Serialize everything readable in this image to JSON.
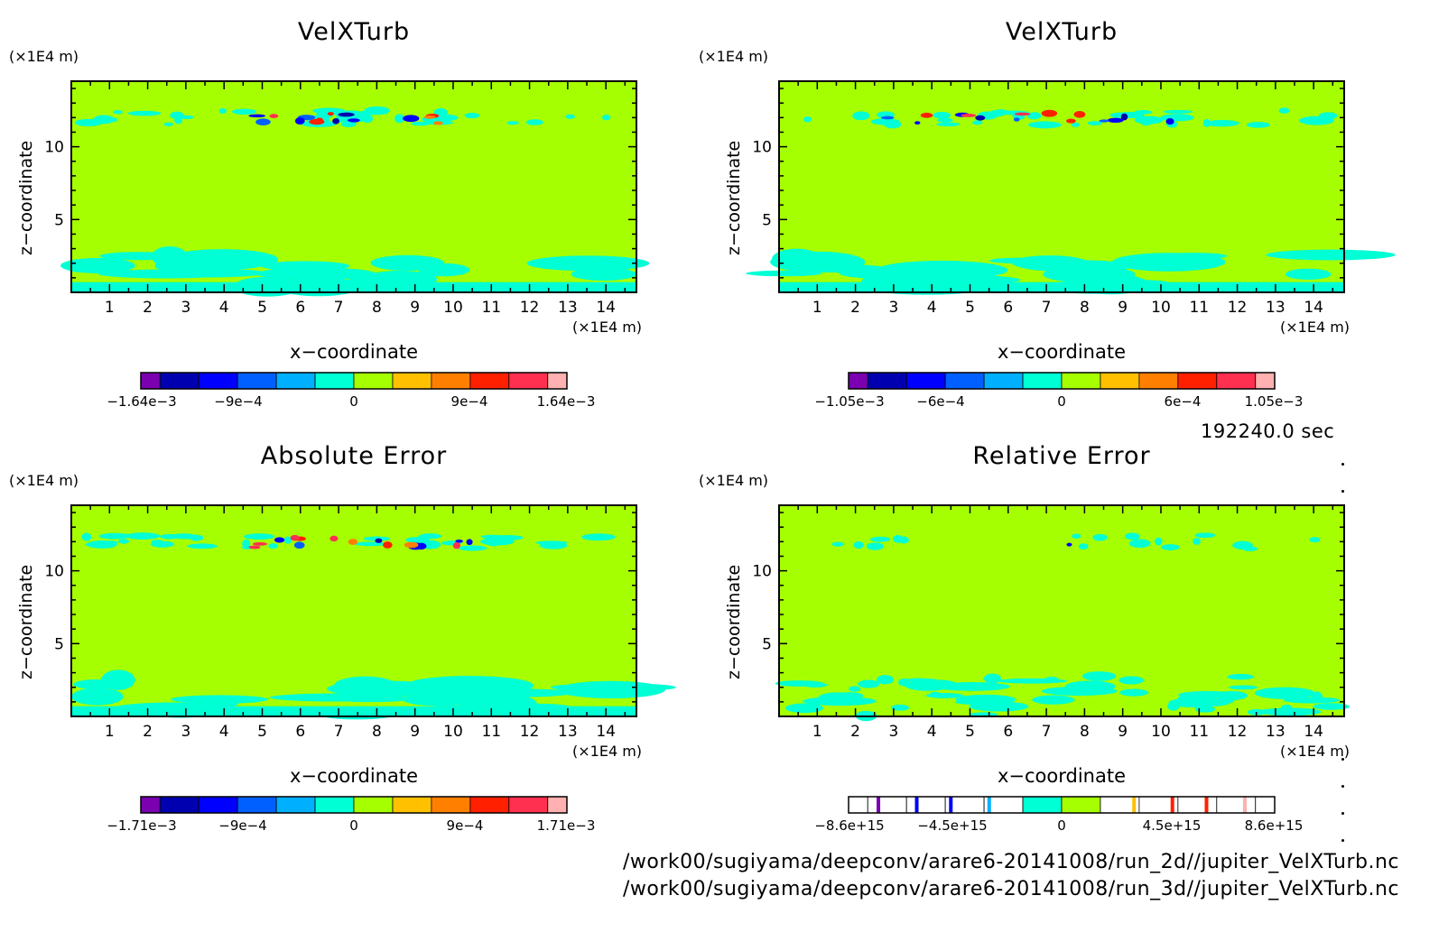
{
  "time_label": "192240.0 sec",
  "footer_lines": [
    "/work00/sugiyama/deepconv/arare6-20141008/run_2d//jupiter_VelXTurb.nc",
    "/work00/sugiyama/deepconv/arare6-20141008/run_3d//jupiter_VelXTurb.nc"
  ],
  "colors": {
    "background_field": "#a6ff00",
    "cyan_region": "#00ffd5",
    "frame": "#000000"
  },
  "colorbar_palette": [
    "#7a00b0",
    "#0000b0",
    "#0000ff",
    "#0060ff",
    "#00b0ff",
    "#00ffd5",
    "#a6ff00",
    "#ffc000",
    "#ff8000",
    "#ff2000",
    "#ff3050",
    "#ffb0b0"
  ],
  "panels": [
    {
      "title": "VelXTurb",
      "y_unit": "(×1E4 m)",
      "x_unit": "(×1E4 m)",
      "xlabel": "x−coordinate",
      "ylabel": "z−coordinate",
      "colorbar_labels": [
        "−1.64e−3",
        "−9e−4",
        "0",
        "9e−4",
        "1.64e−3"
      ]
    },
    {
      "title": "VelXTurb",
      "y_unit": "(×1E4 m)",
      "x_unit": "(×1E4 m)",
      "xlabel": "x−coordinate",
      "ylabel": "z−coordinate",
      "colorbar_labels": [
        "−1.05e−3",
        "−6e−4",
        "0",
        "6e−4",
        "1.05e−3"
      ]
    },
    {
      "title": "Absolute Error",
      "y_unit": "(×1E4 m)",
      "x_unit": "(×1E4 m)",
      "xlabel": "x−coordinate",
      "ylabel": "z−coordinate",
      "colorbar_labels": [
        "−1.71e−3",
        "−9e−4",
        "0",
        "9e−4",
        "1.71e−3"
      ]
    },
    {
      "title": "Relative Error",
      "y_unit": "(×1E4 m)",
      "x_unit": "(×1E4 m)",
      "xlabel": "x−coordinate",
      "ylabel": "z−coordinate",
      "colorbar_labels": [
        "−8.6e+15",
        "−4.5e+15",
        "0",
        "4.5e+15",
        "8.6e+15"
      ]
    }
  ],
  "chart_data": [
    {
      "type": "heatmap",
      "title": "VelXTurb",
      "xlabel": "x−coordinate",
      "ylabel": "z−coordinate",
      "x_ticks": [
        1,
        2,
        3,
        4,
        5,
        6,
        7,
        8,
        9,
        10,
        11,
        12,
        13,
        14
      ],
      "y_ticks": [
        5,
        10
      ],
      "xlim": [
        0,
        14.8
      ],
      "ylim": [
        0,
        14.5
      ],
      "colorbar_range": [
        -0.00164,
        0.00164
      ]
    },
    {
      "type": "heatmap",
      "title": "VelXTurb",
      "xlabel": "x−coordinate",
      "ylabel": "z−coordinate",
      "x_ticks": [
        1,
        2,
        3,
        4,
        5,
        6,
        7,
        8,
        9,
        10,
        11,
        12,
        13,
        14
      ],
      "y_ticks": [
        5,
        10
      ],
      "xlim": [
        0,
        14.8
      ],
      "ylim": [
        0,
        14.5
      ],
      "colorbar_range": [
        -0.00105,
        0.00105
      ]
    },
    {
      "type": "heatmap",
      "title": "Absolute Error",
      "xlabel": "x−coordinate",
      "ylabel": "z−coordinate",
      "x_ticks": [
        1,
        2,
        3,
        4,
        5,
        6,
        7,
        8,
        9,
        10,
        11,
        12,
        13,
        14
      ],
      "y_ticks": [
        5,
        10
      ],
      "xlim": [
        0,
        14.8
      ],
      "ylim": [
        0,
        14.5
      ],
      "colorbar_range": [
        -0.00171,
        0.00171
      ]
    },
    {
      "type": "heatmap",
      "title": "Relative Error",
      "xlabel": "x−coordinate",
      "ylabel": "z−coordinate",
      "x_ticks": [
        1,
        2,
        3,
        4,
        5,
        6,
        7,
        8,
        9,
        10,
        11,
        12,
        13,
        14
      ],
      "y_ticks": [
        5,
        10
      ],
      "xlim": [
        0,
        14.8
      ],
      "ylim": [
        0,
        14.5
      ],
      "colorbar_range": [
        -8600000000000000.0,
        8600000000000000.0
      ]
    }
  ]
}
